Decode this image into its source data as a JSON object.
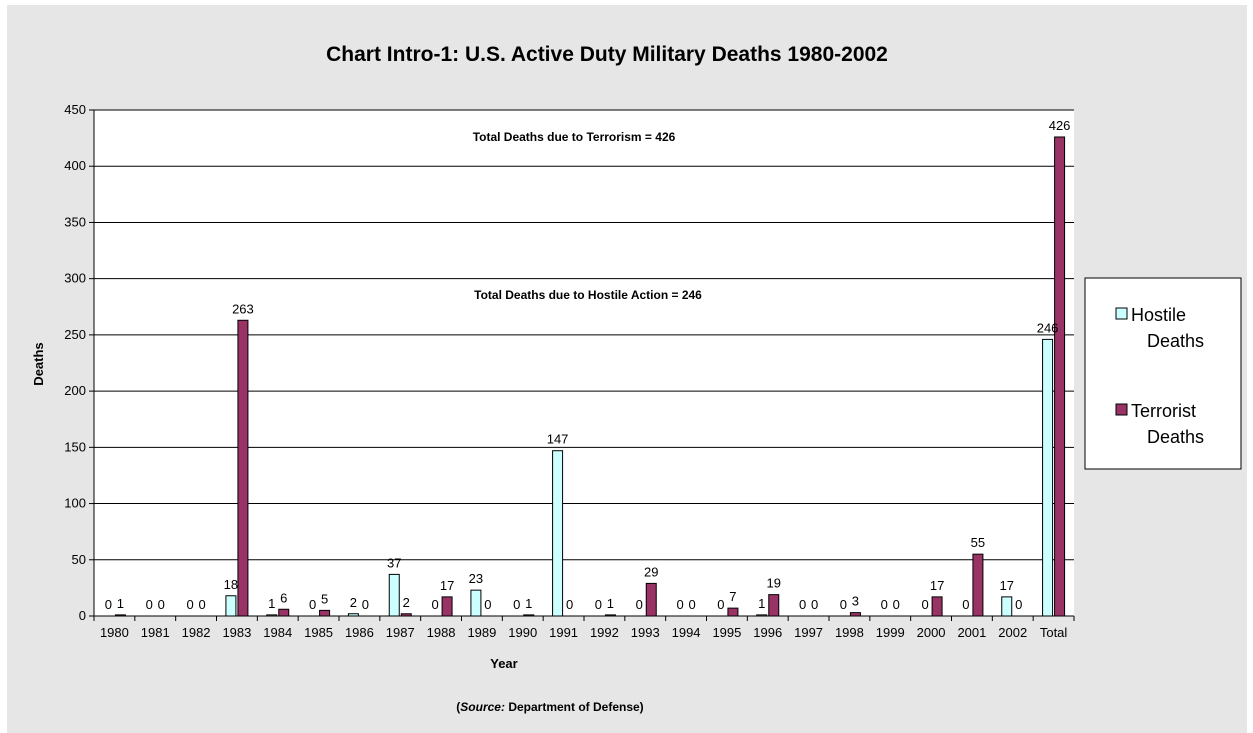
{
  "chart_data": {
    "type": "bar",
    "title": "Chart Intro-1: U.S. Active Duty Military Deaths 1980-2002",
    "xlabel": "Year",
    "ylabel": "Deaths",
    "ylim": [
      0,
      450
    ],
    "yticks": [
      "0",
      "50",
      "100",
      "150",
      "200",
      "250",
      "300",
      "350",
      "400",
      "450"
    ],
    "categories": [
      "1980",
      "1981",
      "1982",
      "1983",
      "1984",
      "1985",
      "1986",
      "1987",
      "1988",
      "1989",
      "1990",
      "1991",
      "1992",
      "1993",
      "1994",
      "1995",
      "1996",
      "1997",
      "1998",
      "1999",
      "2000",
      "2001",
      "2002",
      "Total"
    ],
    "series": [
      {
        "name": "Hostile Deaths",
        "values": [
          0,
          0,
          0,
          18,
          1,
          0,
          2,
          37,
          0,
          23,
          0,
          147,
          0,
          0,
          0,
          0,
          1,
          0,
          0,
          0,
          0,
          0,
          17,
          246
        ]
      },
      {
        "name": "Terrorist Deaths",
        "values": [
          1,
          0,
          0,
          263,
          6,
          5,
          0,
          2,
          17,
          0,
          1,
          0,
          1,
          29,
          0,
          7,
          19,
          0,
          3,
          0,
          17,
          55,
          0,
          426
        ]
      }
    ],
    "series_colors": [
      "#ccffff",
      "#993366"
    ],
    "grid": true,
    "legend_position": "right",
    "annotations": [
      "Total Deaths due to Terrorism = 426",
      "Total Deaths due to Hostile Action = 246"
    ],
    "source_prefix": "(",
    "source_label": "Source:",
    "source_text": " Department of Defense)"
  },
  "legend": {
    "items": [
      {
        "line1": "Hostile",
        "line2": "Deaths"
      },
      {
        "line1": "Terrorist",
        "line2": "Deaths"
      }
    ]
  }
}
